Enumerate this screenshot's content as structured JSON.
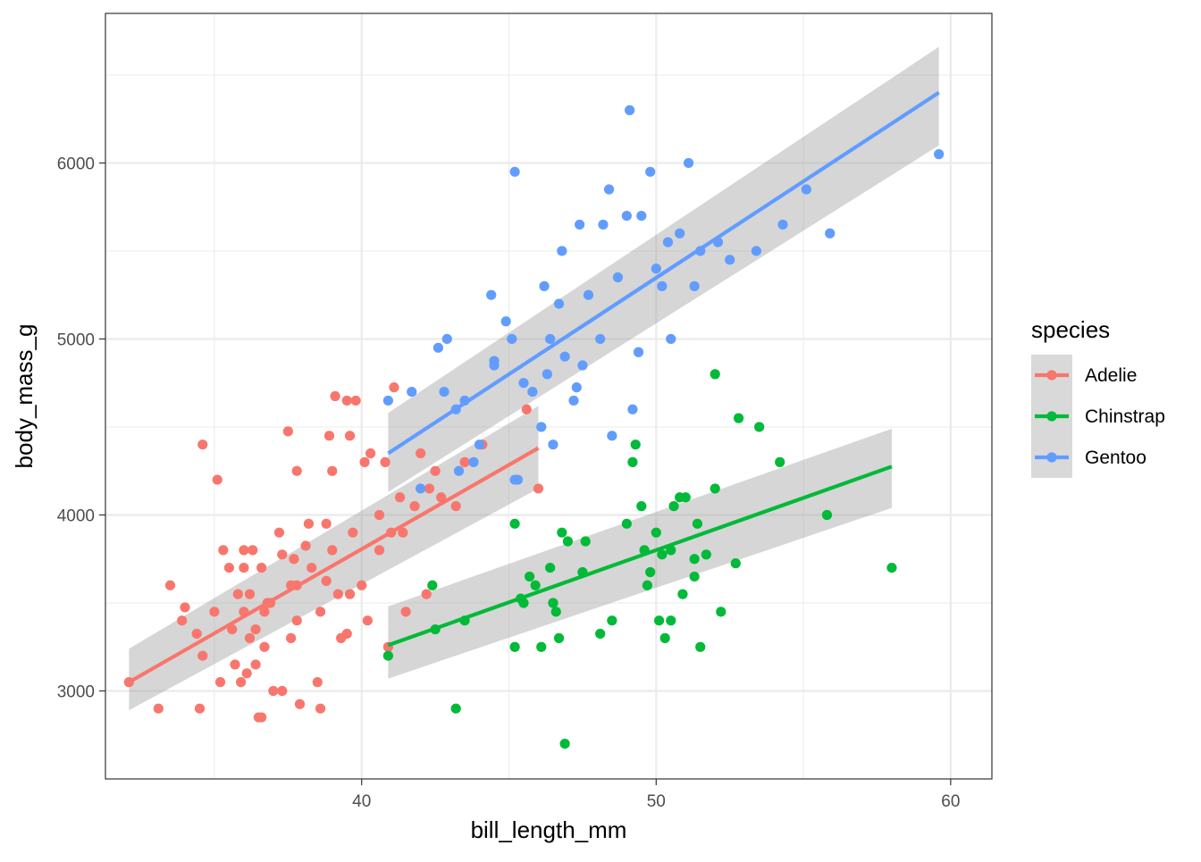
{
  "chart_data": {
    "type": "scatter",
    "xlabel": "bill_length_mm",
    "ylabel": "body_mass_g",
    "xlim": [
      31.3,
      61.4
    ],
    "ylim": [
      2500,
      6850
    ],
    "x_major_ticks": [
      40,
      50,
      60
    ],
    "x_minor_ticks": [
      35,
      45,
      55
    ],
    "y_major_ticks": [
      3000,
      4000,
      5000,
      6000
    ],
    "y_minor_ticks": [
      2500,
      3500,
      4500,
      5500,
      6500
    ],
    "grid": true,
    "legend": {
      "title": "species",
      "position": "right"
    },
    "series": [
      {
        "name": "Adelie",
        "color": "#F8766D",
        "fit": {
          "x": [
            32.1,
            46.0
          ],
          "y": [
            3050,
            4380
          ],
          "ci_lo": [
            2890,
            4150
          ],
          "ci_hi": [
            3240,
            4620
          ]
        },
        "points": [
          [
            32.1,
            3050
          ],
          [
            33.1,
            2900
          ],
          [
            33.5,
            3600
          ],
          [
            33.9,
            3400
          ],
          [
            34.0,
            3475
          ],
          [
            34.4,
            3325
          ],
          [
            34.5,
            2900
          ],
          [
            34.6,
            3200
          ],
          [
            34.6,
            4400
          ],
          [
            35.0,
            3450
          ],
          [
            35.1,
            4200
          ],
          [
            35.2,
            3050
          ],
          [
            35.3,
            3800
          ],
          [
            35.5,
            3700
          ],
          [
            35.6,
            3350
          ],
          [
            35.7,
            3150
          ],
          [
            35.8,
            3550
          ],
          [
            35.9,
            3050
          ],
          [
            36.0,
            3800
          ],
          [
            36.0,
            3700
          ],
          [
            36.0,
            3450
          ],
          [
            36.1,
            3100
          ],
          [
            36.2,
            3300
          ],
          [
            36.2,
            3550
          ],
          [
            36.3,
            3800
          ],
          [
            36.4,
            3150
          ],
          [
            36.5,
            2850
          ],
          [
            36.6,
            2850
          ],
          [
            36.6,
            3700
          ],
          [
            36.7,
            3450
          ],
          [
            36.8,
            3500
          ],
          [
            36.9,
            3500
          ],
          [
            37.0,
            3000
          ],
          [
            37.2,
            3900
          ],
          [
            37.3,
            3000
          ],
          [
            37.3,
            3775
          ],
          [
            37.5,
            4475
          ],
          [
            37.6,
            3600
          ],
          [
            37.6,
            3300
          ],
          [
            37.7,
            3750
          ],
          [
            37.8,
            4250
          ],
          [
            37.8,
            3400
          ],
          [
            37.9,
            2925
          ],
          [
            38.1,
            3825
          ],
          [
            38.2,
            3950
          ],
          [
            38.3,
            3700
          ],
          [
            38.5,
            3050
          ],
          [
            38.6,
            2900
          ],
          [
            38.6,
            3450
          ],
          [
            38.8,
            3625
          ],
          [
            39.0,
            3800
          ],
          [
            39.0,
            4250
          ],
          [
            39.1,
            4675
          ],
          [
            39.3,
            3300
          ],
          [
            39.5,
            4650
          ],
          [
            39.6,
            4450
          ],
          [
            39.6,
            3550
          ],
          [
            39.7,
            3900
          ],
          [
            39.8,
            4650
          ],
          [
            40.0,
            3600
          ],
          [
            40.1,
            4300
          ],
          [
            40.2,
            3400
          ],
          [
            40.3,
            4350
          ],
          [
            40.6,
            4000
          ],
          [
            40.8,
            4300
          ],
          [
            40.9,
            3250
          ],
          [
            41.0,
            3900
          ],
          [
            41.1,
            4725
          ],
          [
            41.3,
            4100
          ],
          [
            41.4,
            3900
          ],
          [
            41.5,
            3450
          ],
          [
            41.8,
            4050
          ],
          [
            42.0,
            4350
          ],
          [
            42.2,
            3550
          ],
          [
            42.3,
            4150
          ],
          [
            42.5,
            4250
          ],
          [
            42.7,
            4100
          ],
          [
            43.2,
            4050
          ],
          [
            43.5,
            4300
          ],
          [
            44.1,
            4400
          ],
          [
            45.6,
            4600
          ],
          [
            46.0,
            4150
          ],
          [
            36.4,
            3350
          ],
          [
            38.8,
            3950
          ],
          [
            39.2,
            3550
          ],
          [
            37.8,
            3600
          ],
          [
            38.9,
            4450
          ],
          [
            40.6,
            3800
          ],
          [
            36.7,
            3250
          ],
          [
            39.5,
            3325
          ]
        ]
      },
      {
        "name": "Chinstrap",
        "color": "#00BA38",
        "fit": {
          "x": [
            40.9,
            58.0
          ],
          "y": [
            3260,
            4275
          ],
          "ci_lo": [
            3070,
            4040
          ],
          "ci_hi": [
            3480,
            4490
          ]
        },
        "points": [
          [
            40.9,
            3200
          ],
          [
            42.4,
            3600
          ],
          [
            42.5,
            3350
          ],
          [
            43.2,
            2900
          ],
          [
            43.5,
            3400
          ],
          [
            45.2,
            3250
          ],
          [
            45.4,
            3525
          ],
          [
            45.5,
            3500
          ],
          [
            45.7,
            3650
          ],
          [
            45.9,
            3600
          ],
          [
            46.1,
            3250
          ],
          [
            46.4,
            3700
          ],
          [
            46.5,
            3500
          ],
          [
            46.6,
            3450
          ],
          [
            46.7,
            3300
          ],
          [
            46.8,
            3900
          ],
          [
            46.9,
            2700
          ],
          [
            47.0,
            3850
          ],
          [
            47.5,
            3675
          ],
          [
            48.1,
            3325
          ],
          [
            48.5,
            3400
          ],
          [
            49.0,
            3950
          ],
          [
            49.2,
            4300
          ],
          [
            49.3,
            4400
          ],
          [
            49.5,
            4050
          ],
          [
            49.6,
            3800
          ],
          [
            49.7,
            3600
          ],
          [
            49.8,
            3675
          ],
          [
            50.0,
            3900
          ],
          [
            50.1,
            3400
          ],
          [
            50.2,
            3775
          ],
          [
            50.3,
            3300
          ],
          [
            50.5,
            3400
          ],
          [
            50.6,
            4050
          ],
          [
            50.8,
            4100
          ],
          [
            50.9,
            3550
          ],
          [
            51.0,
            4100
          ],
          [
            51.3,
            3650
          ],
          [
            51.3,
            3750
          ],
          [
            51.4,
            3950
          ],
          [
            51.5,
            3250
          ],
          [
            51.7,
            3775
          ],
          [
            52.0,
            4800
          ],
          [
            52.0,
            4150
          ],
          [
            52.2,
            3450
          ],
          [
            52.7,
            3725
          ],
          [
            52.8,
            4550
          ],
          [
            53.5,
            4500
          ],
          [
            54.2,
            4300
          ],
          [
            55.8,
            4000
          ],
          [
            58.0,
            3700
          ],
          [
            45.2,
            3950
          ],
          [
            47.6,
            3850
          ],
          [
            50.5,
            3800
          ]
        ]
      },
      {
        "name": "Gentoo",
        "color": "#619CFF",
        "fit": {
          "x": [
            40.9,
            59.6
          ],
          "y": [
            4350,
            6400
          ],
          "ci_lo": [
            4130,
            6100
          ],
          "ci_hi": [
            4580,
            6660
          ]
        },
        "points": [
          [
            40.9,
            4650
          ],
          [
            41.7,
            4700
          ],
          [
            42.0,
            4150
          ],
          [
            42.6,
            4950
          ],
          [
            42.8,
            4700
          ],
          [
            42.9,
            5000
          ],
          [
            43.2,
            4600
          ],
          [
            43.3,
            4250
          ],
          [
            43.5,
            4650
          ],
          [
            43.8,
            4300
          ],
          [
            44.0,
            4400
          ],
          [
            44.4,
            5250
          ],
          [
            44.5,
            4850
          ],
          [
            44.9,
            5100
          ],
          [
            45.1,
            5000
          ],
          [
            45.2,
            5950
          ],
          [
            45.3,
            4200
          ],
          [
            45.5,
            4750
          ],
          [
            45.8,
            4700
          ],
          [
            46.1,
            4500
          ],
          [
            46.2,
            5300
          ],
          [
            46.4,
            5000
          ],
          [
            46.5,
            4400
          ],
          [
            46.7,
            5200
          ],
          [
            46.9,
            4900
          ],
          [
            47.2,
            4650
          ],
          [
            47.5,
            4850
          ],
          [
            47.7,
            5250
          ],
          [
            48.1,
            5000
          ],
          [
            48.4,
            5850
          ],
          [
            48.7,
            5350
          ],
          [
            49.0,
            5700
          ],
          [
            49.1,
            6300
          ],
          [
            49.2,
            4600
          ],
          [
            49.5,
            5700
          ],
          [
            49.8,
            5950
          ],
          [
            50.0,
            5400
          ],
          [
            50.4,
            5550
          ],
          [
            50.5,
            5000
          ],
          [
            50.8,
            5600
          ],
          [
            51.1,
            6000
          ],
          [
            51.3,
            5300
          ],
          [
            51.5,
            5500
          ],
          [
            52.1,
            5550
          ],
          [
            52.5,
            5450
          ],
          [
            53.4,
            5500
          ],
          [
            54.3,
            5650
          ],
          [
            55.1,
            5850
          ],
          [
            55.9,
            5600
          ],
          [
            59.6,
            6050
          ],
          [
            44.5,
            4875
          ],
          [
            46.8,
            5500
          ],
          [
            48.2,
            5650
          ],
          [
            47.4,
            5650
          ],
          [
            49.4,
            4925
          ],
          [
            50.2,
            5300
          ],
          [
            46.3,
            4800
          ],
          [
            45.2,
            4200
          ],
          [
            47.3,
            4725
          ],
          [
            48.5,
            4450
          ]
        ]
      }
    ]
  }
}
